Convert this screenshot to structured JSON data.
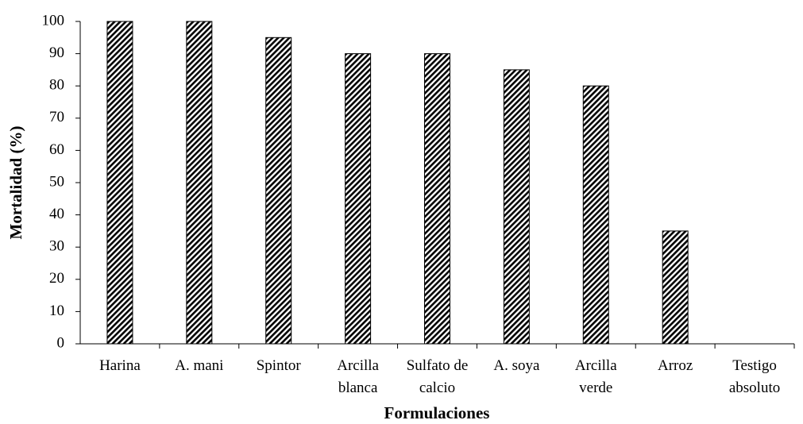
{
  "chart_data": {
    "type": "bar",
    "x_label": "Formulaciones",
    "y_label": "Mortalidad (%)",
    "categories": [
      "Harina",
      "A. mani",
      "Spintor",
      "Arcilla\nblanca",
      "Sulfato de\ncalcio",
      "A. soya",
      "Arcilla\nverde",
      "Arroz",
      "Testigo\nabsoluto"
    ],
    "values": [
      100,
      100,
      95,
      90,
      90,
      85,
      80,
      35,
      0
    ],
    "color": "#000000",
    "ylim": [
      0,
      100
    ],
    "yticks": [
      0,
      10,
      20,
      30,
      40,
      50,
      60,
      70,
      80,
      90,
      100
    ],
    "grid": false
  }
}
